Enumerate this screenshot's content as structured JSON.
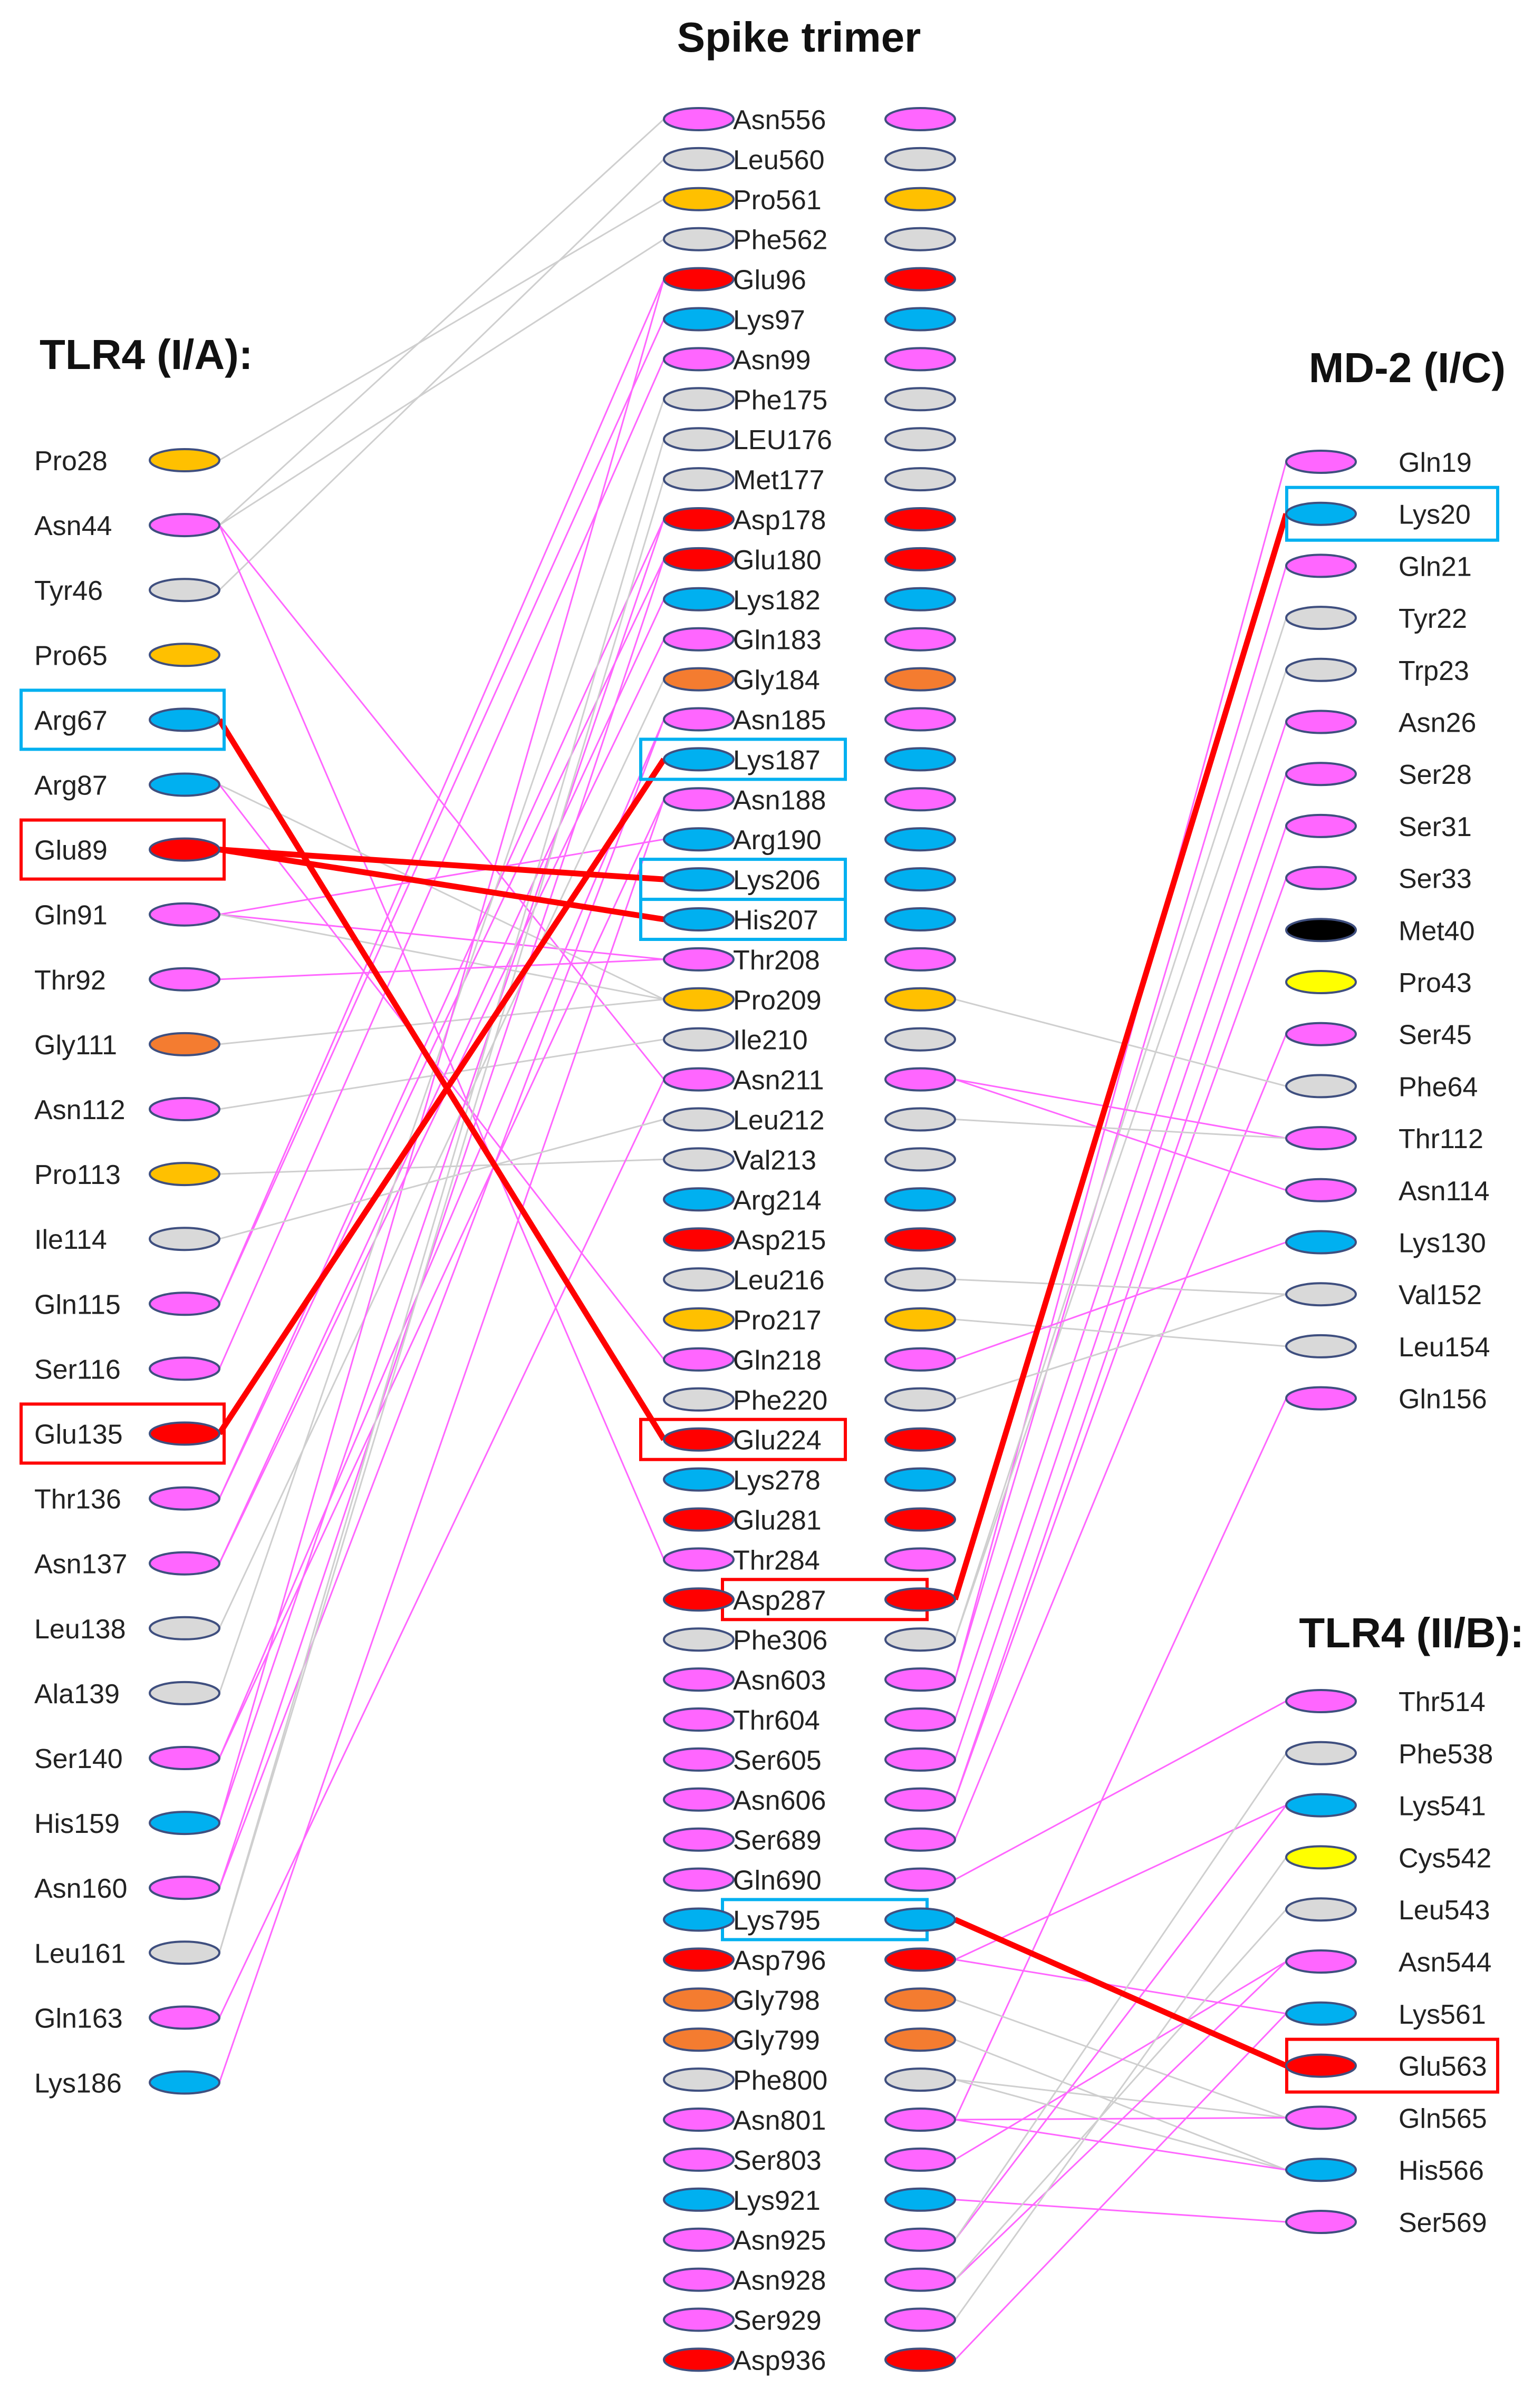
{
  "titles": {
    "spike": "Spike trimer",
    "tlr4a": "TLR4 (I/A):",
    "md2": "MD-2 (I/C)",
    "tlr4b": "TLR4 (II/B):"
  },
  "colors": {
    "polar": "#ff66ff",
    "nonpolar": "#d9d9d9",
    "proline": "#ffc000",
    "acidic": "#ff0000",
    "basic": "#00b0f0",
    "glycine": "#f47c30",
    "cysteine": "#ffff00",
    "methionine": "#000000",
    "outline": "#3f4f7f",
    "link_polar": "#ff66ff",
    "link_hydrophobic": "#cfcfcf",
    "link_saltbridge": "#ff0000",
    "box_basic": "#00b0f0",
    "box_acidic": "#ff0000"
  },
  "spike": [
    {
      "label": "Asn556",
      "type": "polar"
    },
    {
      "label": "Leu560",
      "type": "nonpolar"
    },
    {
      "label": "Pro561",
      "type": "proline"
    },
    {
      "label": "Phe562",
      "type": "nonpolar"
    },
    {
      "label": "Glu96",
      "type": "acidic"
    },
    {
      "label": "Lys97",
      "type": "basic"
    },
    {
      "label": "Asn99",
      "type": "polar"
    },
    {
      "label": "Phe175",
      "type": "nonpolar"
    },
    {
      "label": "LEU176",
      "type": "nonpolar"
    },
    {
      "label": "Met177",
      "type": "nonpolar"
    },
    {
      "label": "Asp178",
      "type": "acidic"
    },
    {
      "label": "Glu180",
      "type": "acidic"
    },
    {
      "label": "Lys182",
      "type": "basic"
    },
    {
      "label": "Gln183",
      "type": "polar"
    },
    {
      "label": "Gly184",
      "type": "glycine"
    },
    {
      "label": "Asn185",
      "type": "polar"
    },
    {
      "label": "Lys187",
      "type": "basic",
      "box": "basic"
    },
    {
      "label": "Asn188",
      "type": "polar"
    },
    {
      "label": "Arg190",
      "type": "basic"
    },
    {
      "label": "Lys206",
      "type": "basic",
      "box": "basic"
    },
    {
      "label": "His207",
      "type": "basic",
      "box": "basic"
    },
    {
      "label": "Thr208",
      "type": "polar"
    },
    {
      "label": "Pro209",
      "type": "proline"
    },
    {
      "label": "Ile210",
      "type": "nonpolar"
    },
    {
      "label": "Asn211",
      "type": "polar"
    },
    {
      "label": "Leu212",
      "type": "nonpolar"
    },
    {
      "label": "Val213",
      "type": "nonpolar"
    },
    {
      "label": "Arg214",
      "type": "basic"
    },
    {
      "label": "Asp215",
      "type": "acidic"
    },
    {
      "label": "Leu216",
      "type": "nonpolar"
    },
    {
      "label": "Pro217",
      "type": "proline"
    },
    {
      "label": "Gln218",
      "type": "polar"
    },
    {
      "label": "Phe220",
      "type": "nonpolar"
    },
    {
      "label": "Glu224",
      "type": "acidic",
      "box": "acidic"
    },
    {
      "label": "Lys278",
      "type": "basic"
    },
    {
      "label": "Glu281",
      "type": "acidic"
    },
    {
      "label": "Thr284",
      "type": "polar"
    },
    {
      "label": "Asp287",
      "type": "acidic",
      "box": "acidic"
    },
    {
      "label": "Phe306",
      "type": "nonpolar"
    },
    {
      "label": "Asn603",
      "type": "polar"
    },
    {
      "label": "Thr604",
      "type": "polar"
    },
    {
      "label": "Ser605",
      "type": "polar"
    },
    {
      "label": "Asn606",
      "type": "polar"
    },
    {
      "label": "Ser689",
      "type": "polar"
    },
    {
      "label": "Gln690",
      "type": "polar"
    },
    {
      "label": "Lys795",
      "type": "basic",
      "box": "basic"
    },
    {
      "label": "Asp796",
      "type": "acidic"
    },
    {
      "label": "Gly798",
      "type": "glycine"
    },
    {
      "label": "Gly799",
      "type": "glycine"
    },
    {
      "label": "Phe800",
      "type": "nonpolar"
    },
    {
      "label": "Asn801",
      "type": "polar"
    },
    {
      "label": "Ser803",
      "type": "polar"
    },
    {
      "label": "Lys921",
      "type": "basic"
    },
    {
      "label": "Asn925",
      "type": "polar"
    },
    {
      "label": "Asn928",
      "type": "polar"
    },
    {
      "label": "Ser929",
      "type": "polar"
    },
    {
      "label": "Asp936",
      "type": "acidic"
    }
  ],
  "tlr4a": [
    {
      "label": "Pro28",
      "type": "proline"
    },
    {
      "label": "Asn44",
      "type": "polar"
    },
    {
      "label": "Tyr46",
      "type": "nonpolar"
    },
    {
      "label": "Pro65",
      "type": "proline"
    },
    {
      "label": "Arg67",
      "type": "basic",
      "box": "basic"
    },
    {
      "label": "Arg87",
      "type": "basic"
    },
    {
      "label": "Glu89",
      "type": "acidic",
      "box": "acidic"
    },
    {
      "label": "Gln91",
      "type": "polar"
    },
    {
      "label": "Thr92",
      "type": "polar"
    },
    {
      "label": "Gly111",
      "type": "glycine"
    },
    {
      "label": "Asn112",
      "type": "polar"
    },
    {
      "label": "Pro113",
      "type": "proline"
    },
    {
      "label": "Ile114",
      "type": "nonpolar"
    },
    {
      "label": "Gln115",
      "type": "polar"
    },
    {
      "label": "Ser116",
      "type": "polar"
    },
    {
      "label": "Glu135",
      "type": "acidic",
      "box": "acidic"
    },
    {
      "label": "Thr136",
      "type": "polar"
    },
    {
      "label": "Asn137",
      "type": "polar"
    },
    {
      "label": "Leu138",
      "type": "nonpolar"
    },
    {
      "label": "Ala139",
      "type": "nonpolar"
    },
    {
      "label": "Ser140",
      "type": "polar"
    },
    {
      "label": "His159",
      "type": "basic"
    },
    {
      "label": "Asn160",
      "type": "polar"
    },
    {
      "label": "Leu161",
      "type": "nonpolar"
    },
    {
      "label": "Gln163",
      "type": "polar"
    },
    {
      "label": "Lys186",
      "type": "basic"
    }
  ],
  "md2": [
    {
      "label": "Gln19",
      "type": "polar"
    },
    {
      "label": "Lys20",
      "type": "basic",
      "box": "basic"
    },
    {
      "label": "Gln21",
      "type": "polar"
    },
    {
      "label": "Tyr22",
      "type": "nonpolar"
    },
    {
      "label": "Trp23",
      "type": "nonpolar"
    },
    {
      "label": "Asn26",
      "type": "polar"
    },
    {
      "label": "Ser28",
      "type": "polar"
    },
    {
      "label": "Ser31",
      "type": "polar"
    },
    {
      "label": "Ser33",
      "type": "polar"
    },
    {
      "label": "Met40",
      "type": "methionine"
    },
    {
      "label": "Pro43",
      "type": "cysteine"
    },
    {
      "label": "Ser45",
      "type": "polar"
    },
    {
      "label": "Phe64",
      "type": "nonpolar"
    },
    {
      "label": "Thr112",
      "type": "polar"
    },
    {
      "label": "Asn114",
      "type": "polar"
    },
    {
      "label": "Lys130",
      "type": "basic"
    },
    {
      "label": "Val152",
      "type": "nonpolar"
    },
    {
      "label": "Leu154",
      "type": "nonpolar"
    },
    {
      "label": "Gln156",
      "type": "polar"
    }
  ],
  "tlr4b": [
    {
      "label": "Thr514",
      "type": "polar"
    },
    {
      "label": "Phe538",
      "type": "nonpolar"
    },
    {
      "label": "Lys541",
      "type": "basic"
    },
    {
      "label": "Cys542",
      "type": "cysteine"
    },
    {
      "label": "Leu543",
      "type": "nonpolar"
    },
    {
      "label": "Asn544",
      "type": "polar"
    },
    {
      "label": "Lys561",
      "type": "basic"
    },
    {
      "label": "Glu563",
      "type": "acidic",
      "box": "acidic"
    },
    {
      "label": "Gln565",
      "type": "polar"
    },
    {
      "label": "His566",
      "type": "basic"
    },
    {
      "label": "Ser569",
      "type": "polar"
    }
  ],
  "left_links": [
    [
      "Asn44",
      "Asn556",
      "hydrophobic"
    ],
    [
      "Tyr46",
      "Leu560",
      "hydrophobic"
    ],
    [
      "Pro28",
      "Pro561",
      "hydrophobic"
    ],
    [
      "Asn44",
      "Phe562",
      "hydrophobic"
    ],
    [
      "Arg67",
      "Glu224",
      "saltbridge"
    ],
    [
      "Glu89",
      "Lys206",
      "saltbridge"
    ],
    [
      "Glu89",
      "His207",
      "saltbridge"
    ],
    [
      "Glu135",
      "Lys187",
      "saltbridge"
    ],
    [
      "Asn44",
      "Thr284",
      "polar"
    ],
    [
      "Asn44",
      "Asn211",
      "polar"
    ],
    [
      "Gln91",
      "Arg190",
      "polar"
    ],
    [
      "Gln91",
      "Thr208",
      "polar"
    ],
    [
      "Gln91",
      "Pro209",
      "hydrophobic"
    ],
    [
      "Arg87",
      "Pro209",
      "hydrophobic"
    ],
    [
      "Arg87",
      "Gln218",
      "polar"
    ],
    [
      "Gly111",
      "Pro209",
      "hydrophobic"
    ],
    [
      "Asn112",
      "Ile210",
      "hydrophobic"
    ],
    [
      "Pro113",
      "Val213",
      "hydrophobic"
    ],
    [
      "Gln115",
      "Glu96",
      "polar"
    ],
    [
      "Gln115",
      "Lys97",
      "polar"
    ],
    [
      "Ser116",
      "Asn99",
      "polar"
    ],
    [
      "Thr136",
      "Asp178",
      "polar"
    ],
    [
      "Thr136",
      "Glu180",
      "polar"
    ],
    [
      "Asn137",
      "Lys182",
      "polar"
    ],
    [
      "Asn137",
      "Gln183",
      "polar"
    ],
    [
      "Leu138",
      "Gly184",
      "hydrophobic"
    ],
    [
      "Ala139",
      "Phe175",
      "hydrophobic"
    ],
    [
      "Ser140",
      "Asn185",
      "polar"
    ],
    [
      "Ser140",
      "Asn188",
      "polar"
    ],
    [
      "His159",
      "Glu96",
      "polar"
    ],
    [
      "His159",
      "Asp178",
      "polar"
    ],
    [
      "Asn160",
      "Glu180",
      "polar"
    ],
    [
      "Asn160",
      "Asn185",
      "polar"
    ],
    [
      "Leu161",
      "LEU176",
      "hydrophobic"
    ],
    [
      "Leu161",
      "Met177",
      "hydrophobic"
    ],
    [
      "Gln163",
      "Asn211",
      "polar"
    ],
    [
      "Lys186",
      "Asn188",
      "polar"
    ],
    [
      "Ile114",
      "Leu212",
      "hydrophobic"
    ],
    [
      "Thr92",
      "Thr208",
      "polar"
    ]
  ],
  "right_links": [
    [
      "Asp287",
      "Lys20",
      "saltbridge"
    ],
    [
      "Lys795",
      "Glu563",
      "saltbridge"
    ],
    [
      "Asn603",
      "Gln19",
      "polar"
    ],
    [
      "Asn603",
      "Gln21",
      "polar"
    ],
    [
      "Thr604",
      "Asn26",
      "polar"
    ],
    [
      "Ser605",
      "Ser28",
      "polar"
    ],
    [
      "Asn606",
      "Ser31",
      "polar"
    ],
    [
      "Asn606",
      "Ser33",
      "polar"
    ],
    [
      "Ser689",
      "Ser45",
      "polar"
    ],
    [
      "Gln690",
      "Thr514",
      "polar"
    ],
    [
      "Phe306",
      "Tyr22",
      "hydrophobic"
    ],
    [
      "Phe306",
      "Trp23",
      "hydrophobic"
    ],
    [
      "Asn211",
      "Thr112",
      "polar"
    ],
    [
      "Asn211",
      "Asn114",
      "polar"
    ],
    [
      "Leu212",
      "Thr112",
      "hydrophobic"
    ],
    [
      "Pro209",
      "Phe64",
      "hydrophobic"
    ],
    [
      "Pro217",
      "Leu154",
      "hydrophobic"
    ],
    [
      "Leu216",
      "Val152",
      "hydrophobic"
    ],
    [
      "Gln218",
      "Lys130",
      "polar"
    ],
    [
      "Phe220",
      "Val152",
      "hydrophobic"
    ],
    [
      "Asn801",
      "Gln156",
      "polar"
    ],
    [
      "Asp796",
      "Lys541",
      "polar"
    ],
    [
      "Asp796",
      "Lys561",
      "polar"
    ],
    [
      "Gly798",
      "Gln565",
      "hydrophobic"
    ],
    [
      "Gly799",
      "His566",
      "hydrophobic"
    ],
    [
      "Phe800",
      "Gln565",
      "hydrophobic"
    ],
    [
      "Phe800",
      "His566",
      "hydrophobic"
    ],
    [
      "Asn801",
      "Gln565",
      "polar"
    ],
    [
      "Asn801",
      "His566",
      "polar"
    ],
    [
      "Ser803",
      "Asn544",
      "polar"
    ],
    [
      "Lys921",
      "Ser569",
      "polar"
    ],
    [
      "Asn925",
      "Lys541",
      "polar"
    ],
    [
      "Asn928",
      "Asn544",
      "polar"
    ],
    [
      "Asn928",
      "Leu543",
      "hydrophobic"
    ],
    [
      "Ser929",
      "Cys542",
      "hydrophobic"
    ],
    [
      "Asp936",
      "Lys561",
      "polar"
    ],
    [
      "Asn925",
      "Phe538",
      "hydrophobic"
    ]
  ]
}
